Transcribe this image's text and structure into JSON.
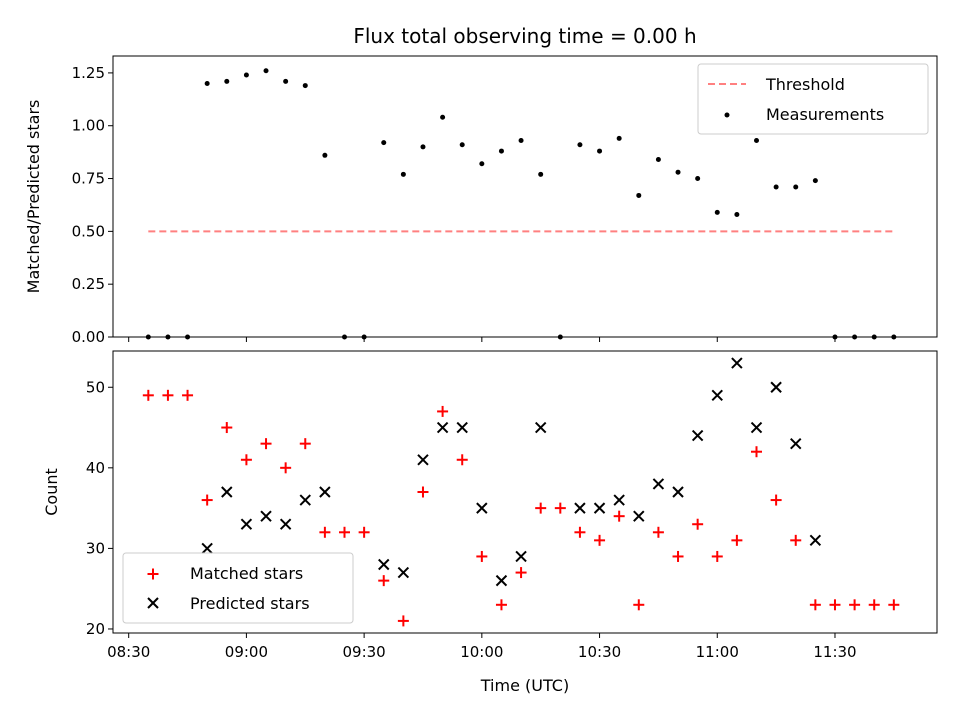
{
  "chart_data": [
    {
      "type": "scatter",
      "title": "Flux total observing time = 0.00 h",
      "xlabel": "",
      "ylabel": "Matched/Predicted stars",
      "ylim": [
        0,
        1.33
      ],
      "yticks": [
        "0.00",
        "0.25",
        "0.50",
        "0.75",
        "1.00",
        "1.25"
      ],
      "grid": false,
      "legend_position": "top-right",
      "threshold": {
        "name": "Threshold",
        "value": 0.5,
        "x_start": "08:35",
        "x_end": "11:45",
        "color": "#ff8080",
        "style": "dashed"
      },
      "series": [
        {
          "name": "Measurements",
          "color": "#000000",
          "x": [
            "08:35",
            "08:40",
            "08:45",
            "08:50",
            "08:55",
            "09:00",
            "09:05",
            "09:10",
            "09:15",
            "09:20",
            "09:25",
            "09:30",
            "09:35",
            "09:40",
            "09:45",
            "09:50",
            "09:55",
            "10:00",
            "10:05",
            "10:10",
            "10:15",
            "10:20",
            "10:25",
            "10:30",
            "10:35",
            "10:40",
            "10:45",
            "10:50",
            "10:55",
            "11:00",
            "11:05",
            "11:10",
            "11:15",
            "11:20",
            "11:25",
            "11:30",
            "11:35",
            "11:40",
            "11:45"
          ],
          "y": [
            0,
            0,
            0,
            1.2,
            1.21,
            1.24,
            1.26,
            1.21,
            1.19,
            0.86,
            0,
            0,
            0.92,
            0.77,
            0.9,
            1.04,
            0.91,
            0.82,
            0.88,
            0.93,
            0.77,
            0,
            0.91,
            0.88,
            0.94,
            0.67,
            0.84,
            0.78,
            0.75,
            0.59,
            0.58,
            0.93,
            0.71,
            0.71,
            0.74,
            0,
            0,
            0,
            0
          ]
        }
      ]
    },
    {
      "type": "scatter",
      "title": "",
      "xlabel": "Time (UTC)",
      "ylabel": "Count",
      "ylim": [
        19.5,
        54.5
      ],
      "yticks": [
        "20",
        "30",
        "40",
        "50"
      ],
      "xticks": [
        "08:30",
        "09:00",
        "09:30",
        "10:00",
        "10:30",
        "11:00",
        "11:30"
      ],
      "xlim": [
        "08:26",
        "11:56"
      ],
      "grid": false,
      "legend_position": "bottom-left",
      "series": [
        {
          "name": "Matched stars",
          "marker": "plus",
          "color": "#ff0000",
          "x": [
            "08:35",
            "08:40",
            "08:45",
            "08:50",
            "08:55",
            "09:00",
            "09:05",
            "09:10",
            "09:15",
            "09:20",
            "09:25",
            "09:30",
            "09:35",
            "09:40",
            "09:45",
            "09:50",
            "09:55",
            "10:00",
            "10:05",
            "10:10",
            "10:15",
            "10:20",
            "10:25",
            "10:30",
            "10:35",
            "10:40",
            "10:45",
            "10:50",
            "10:55",
            "11:00",
            "11:05",
            "11:10",
            "11:15",
            "11:20",
            "11:25",
            "11:30",
            "11:35",
            "11:40",
            "11:45"
          ],
          "y": [
            49,
            49,
            49,
            36,
            45,
            41,
            43,
            40,
            43,
            32,
            32,
            32,
            26,
            21,
            37,
            47,
            41,
            29,
            23,
            27,
            35,
            35,
            32,
            31,
            34,
            23,
            32,
            29,
            33,
            29,
            31,
            42,
            36,
            31,
            23,
            23,
            23,
            23,
            23
          ]
        },
        {
          "name": "Predicted stars",
          "marker": "x",
          "color": "#000000",
          "x": [
            "08:50",
            "08:55",
            "09:00",
            "09:05",
            "09:10",
            "09:15",
            "09:20",
            "09:35",
            "09:40",
            "09:45",
            "09:50",
            "09:55",
            "10:00",
            "10:05",
            "10:10",
            "10:15",
            "10:25",
            "10:30",
            "10:35",
            "10:40",
            "10:45",
            "10:50",
            "10:55",
            "11:00",
            "11:05",
            "11:10",
            "11:15",
            "11:20",
            "11:25"
          ],
          "y": [
            30,
            37,
            33,
            34,
            33,
            36,
            37,
            28,
            27,
            41,
            45,
            45,
            35,
            26,
            29,
            45,
            35,
            35,
            36,
            34,
            38,
            37,
            44,
            49,
            53,
            45,
            50,
            43,
            31
          ]
        }
      ]
    }
  ]
}
